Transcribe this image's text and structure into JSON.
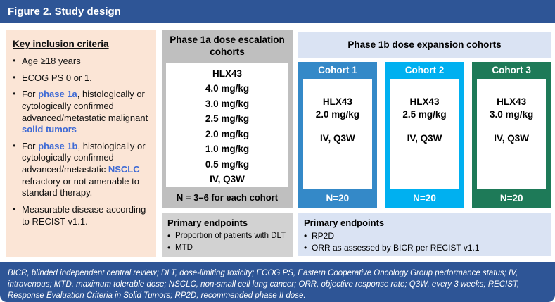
{
  "header": {
    "title": "Figure 2. Study design"
  },
  "glyphs": {
    "bullet": "•"
  },
  "colors": {
    "primary_dark_blue": "#2E5596",
    "accent_text_blue": "#3E6AD5",
    "inclusion_peach": "#FBE5D6",
    "phase1a_gray": "#BFBFBF",
    "endpoints_gray": "#D2D2D2",
    "phase1b_periwinkle": "#DAE3F3",
    "cohort1_blue": "#3489C8",
    "cohort2_cyan": "#00B0F0",
    "cohort3_green": "#1E7A58"
  },
  "inclusion_panel": {
    "heading": "Key inclusion criteria",
    "bullets": [
      [
        {
          "t": "Age ≥18 years"
        }
      ],
      [
        {
          "t": "ECOG PS 0 or 1."
        }
      ],
      [
        {
          "t": "For "
        },
        {
          "t": "phase 1a",
          "b": true
        },
        {
          "t": ", histologically or cytologically confirmed advanced/metastatic malignant "
        },
        {
          "t": "solid tumors",
          "b": true
        }
      ],
      [
        {
          "t": "For "
        },
        {
          "t": "phase 1b",
          "b": true
        },
        {
          "t": ", histologically or cytologically confirmed advanced/metastatic "
        },
        {
          "t": "NSCLC",
          "b": true
        },
        {
          "t": " refractory or not amenable to standard therapy."
        }
      ],
      [
        {
          "t": "Measurable disease according to RECIST v1.1."
        }
      ]
    ]
  },
  "phase1a": {
    "heading": "Phase 1a dose escalation cohorts",
    "drug": "HLX43",
    "doses": [
      "4.0 mg/kg",
      "3.0 mg/kg",
      "2.5 mg/kg",
      "2.0 mg/kg",
      "1.0 mg/kg",
      "0.5 mg/kg"
    ],
    "schedule": "IV, Q3W",
    "n_label": "N = 3–6 for each cohort",
    "endpoints": {
      "heading": "Primary endpoints",
      "bullets": [
        "Proportion of patients with DLT",
        "MTD"
      ]
    }
  },
  "phase1b": {
    "heading": "Phase 1b dose expansion cohorts",
    "cohorts": [
      {
        "label": "Cohort 1",
        "drug": "HLX43",
        "dose": "2.0 mg/kg",
        "schedule": "IV, Q3W",
        "n": "N=20",
        "color": "#3489C8"
      },
      {
        "label": "Cohort 2",
        "drug": "HLX43",
        "dose": "2.5 mg/kg",
        "schedule": "IV, Q3W",
        "n": "N=20",
        "color": "#00B0F0"
      },
      {
        "label": "Cohort 3",
        "drug": "HLX43",
        "dose": "3.0 mg/kg",
        "schedule": "IV, Q3W",
        "n": "N=20",
        "color": "#1E7A58"
      }
    ],
    "endpoints": {
      "heading": "Primary endpoints",
      "bullets": [
        "RP2D",
        "ORR as assessed by BICR per RECIST v1.1"
      ]
    }
  },
  "footer": {
    "text": "BICR, blinded independent central review; DLT, dose-limiting toxicity; ECOG PS, Eastern Cooperative Oncology Group performance status; IV, intravenous; MTD, maximum tolerable dose; NSCLC, non-small cell lung cancer; ORR, objective response rate; Q3W, every 3 weeks; RECIST, Response Evaluation Criteria in Solid Tumors; RP2D, recommended phase II dose."
  }
}
